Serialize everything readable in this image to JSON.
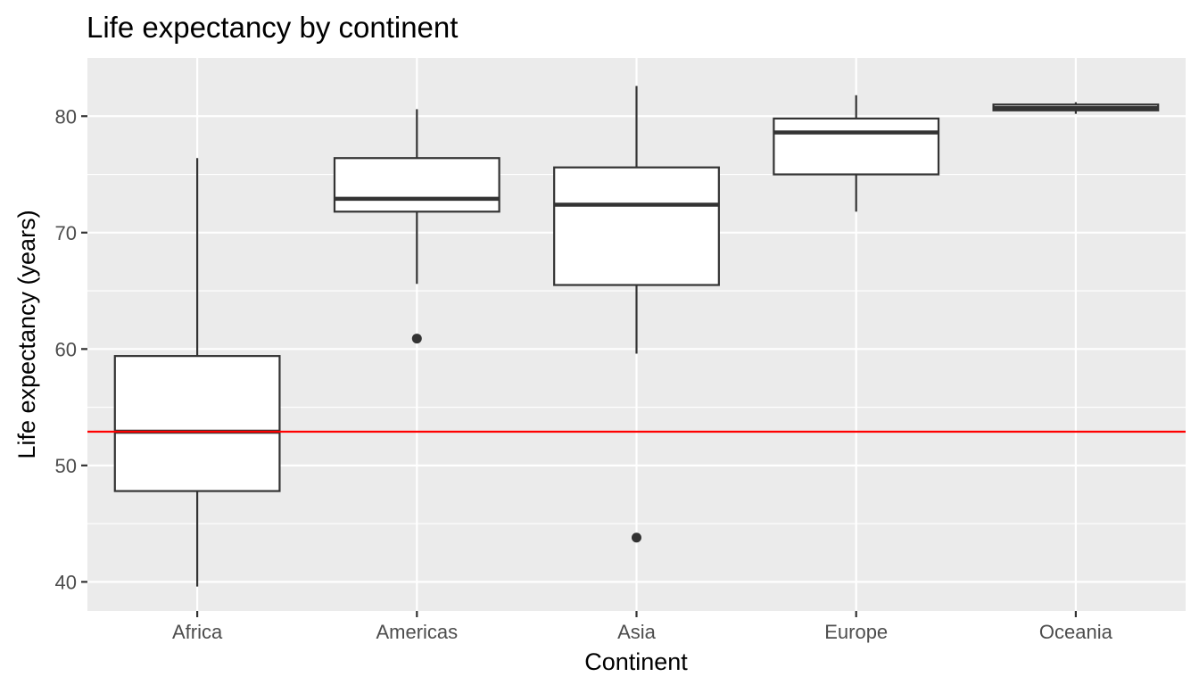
{
  "chart_data": {
    "type": "boxplot",
    "title": "Life expectancy by continent",
    "xlabel": "Continent",
    "ylabel": "Life expectancy (years)",
    "categories": [
      "Africa",
      "Americas",
      "Asia",
      "Europe",
      "Oceania"
    ],
    "ylim": [
      37.5,
      85
    ],
    "yticks": [
      40,
      50,
      60,
      70,
      80
    ],
    "grid": true,
    "boxes": [
      {
        "category": "Africa",
        "whisker_low": 39.6,
        "q1": 47.8,
        "median": 52.9,
        "q3": 59.4,
        "whisker_high": 76.4,
        "outliers": []
      },
      {
        "category": "Americas",
        "whisker_low": 65.6,
        "q1": 71.8,
        "median": 72.9,
        "q3": 76.4,
        "whisker_high": 80.6,
        "outliers": [
          60.9
        ]
      },
      {
        "category": "Asia",
        "whisker_low": 59.6,
        "q1": 65.5,
        "median": 72.4,
        "q3": 75.6,
        "whisker_high": 82.6,
        "outliers": [
          43.8
        ]
      },
      {
        "category": "Europe",
        "whisker_low": 71.8,
        "q1": 75.0,
        "median": 78.6,
        "q3": 79.8,
        "whisker_high": 81.8,
        "outliers": []
      },
      {
        "category": "Oceania",
        "whisker_low": 80.2,
        "q1": 80.5,
        "median": 80.7,
        "q3": 81.0,
        "whisker_high": 81.2,
        "outliers": []
      }
    ],
    "reference_line": {
      "y": 52.9,
      "color": "#ff0000"
    },
    "colors": {
      "panel_background": "#ebebeb",
      "grid_major": "#ffffff",
      "box_fill": "#ffffff",
      "box_line": "#333333",
      "tick_label": "#4d4d4d"
    }
  }
}
